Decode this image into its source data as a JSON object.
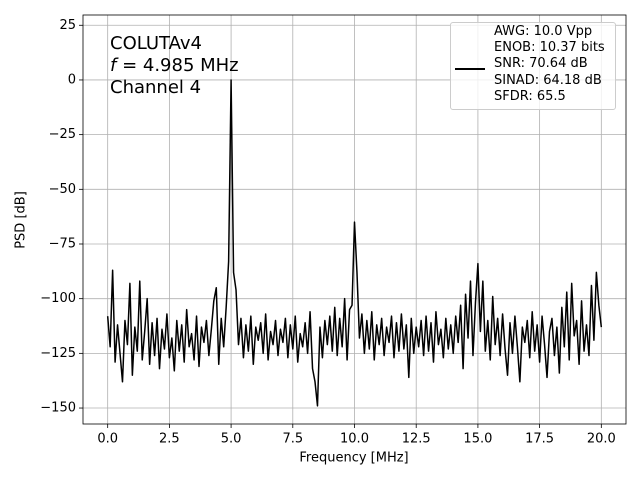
{
  "chart_data": {
    "type": "line",
    "annotation": {
      "line1": "COLUTAv4",
      "symbol": "f",
      "line2": " = 4.985 MHz",
      "line3": "Channel 4"
    },
    "x_label": "Frequency [MHz]",
    "y_label": "PSD [dB]",
    "xlim": [
      -1,
      21
    ],
    "ylim": [
      -157.3,
      29.7
    ],
    "xticks": [
      {
        "value": 0,
        "label": "0.0"
      },
      2.5,
      {
        "value": 5,
        "label": "5.0"
      },
      7.5,
      {
        "value": 10,
        "label": "10.0"
      },
      12.5,
      {
        "value": 15,
        "label": "15.0"
      },
      17.5,
      {
        "value": 20,
        "label": "20.0"
      }
    ],
    "yticks": [
      25,
      0,
      {
        "value": -25,
        "label": "−25"
      },
      {
        "value": -50,
        "label": "−50"
      },
      {
        "value": -75,
        "label": "−75"
      },
      {
        "value": -100,
        "label": "−100"
      },
      {
        "value": -125,
        "label": "−125"
      },
      {
        "value": -150,
        "label": "−150"
      }
    ],
    "grid": true,
    "x": [
      0,
      0.1,
      0.2,
      0.3,
      0.4,
      0.5,
      0.6,
      0.7,
      0.8,
      0.9,
      1,
      1.1,
      1.2,
      1.3,
      1.4,
      1.5,
      1.6,
      1.7,
      1.8,
      1.9,
      2,
      2.1,
      2.2,
      2.3,
      2.4,
      2.5,
      2.6,
      2.7,
      2.8,
      2.9,
      3,
      3.1,
      3.2,
      3.3,
      3.4,
      3.5,
      3.6,
      3.7,
      3.8,
      3.9,
      4,
      4.1,
      4.2,
      4.3,
      4.4,
      4.5,
      4.6,
      4.7,
      4.8,
      4.9,
      5,
      5.1,
      5.2,
      5.3,
      5.4,
      5.5,
      5.6,
      5.7,
      5.8,
      5.9,
      6,
      6.1,
      6.2,
      6.3,
      6.4,
      6.5,
      6.6,
      6.7,
      6.8,
      6.9,
      7,
      7.1,
      7.2,
      7.3,
      7.4,
      7.5,
      7.6,
      7.7,
      7.8,
      7.9,
      8,
      8.1,
      8.2,
      8.3,
      8.4,
      8.5,
      8.6,
      8.7,
      8.8,
      8.9,
      9,
      9.1,
      9.2,
      9.3,
      9.4,
      9.5,
      9.6,
      9.7,
      9.8,
      9.9,
      10,
      10.1,
      10.2,
      10.3,
      10.4,
      10.5,
      10.6,
      10.7,
      10.8,
      10.9,
      11,
      11.1,
      11.2,
      11.3,
      11.4,
      11.5,
      11.6,
      11.7,
      11.8,
      11.9,
      12,
      12.1,
      12.2,
      12.3,
      12.4,
      12.5,
      12.6,
      12.7,
      12.8,
      12.9,
      13,
      13.1,
      13.2,
      13.3,
      13.4,
      13.5,
      13.6,
      13.7,
      13.8,
      13.9,
      14,
      14.1,
      14.2,
      14.3,
      14.4,
      14.5,
      14.6,
      14.7,
      14.8,
      14.9,
      15,
      15.1,
      15.2,
      15.3,
      15.4,
      15.5,
      15.6,
      15.7,
      15.8,
      15.9,
      16,
      16.1,
      16.2,
      16.3,
      16.4,
      16.5,
      16.6,
      16.7,
      16.8,
      16.9,
      17,
      17.1,
      17.2,
      17.3,
      17.4,
      17.5,
      17.6,
      17.7,
      17.8,
      17.9,
      18,
      18.1,
      18.2,
      18.3,
      18.4,
      18.5,
      18.6,
      18.7,
      18.8,
      18.9,
      19,
      19.1,
      19.2,
      19.3,
      19.4,
      19.5,
      19.6,
      19.7,
      19.8,
      19.9,
      20
    ],
    "series": [
      {
        "name": "AWG: 10.0 Vpp\nENOB: 10.37 bits\nSNR: 70.64 dB\nSINAD: 64.18 dB\nSFDR: 65.5",
        "color": "#000000",
        "values": [
          -108,
          -122,
          -87,
          -129,
          -112,
          -125,
          -138,
          -110,
          -121,
          -93,
          -135,
          -113,
          -124,
          -92,
          -128,
          -115,
          -100,
          -130,
          -111,
          -126,
          -109,
          -132,
          -114,
          -123,
          -107,
          -127,
          -118,
          -133,
          -110,
          -124,
          -112,
          -129,
          -105,
          -122,
          -116,
          -128,
          -108,
          -131,
          -113,
          -120,
          -110,
          -126,
          -114,
          -101,
          -95,
          -130,
          -109,
          -122,
          -104,
          -83,
          0,
          -88,
          -96,
          -121,
          -109,
          -127,
          -112,
          -124,
          -108,
          -130,
          -113,
          -119,
          -111,
          -125,
          -107,
          -128,
          -115,
          -121,
          -110,
          -126,
          -114,
          -120,
          -109,
          -127,
          -112,
          -123,
          -108,
          -129,
          -116,
          -122,
          -111,
          -125,
          -106,
          -132,
          -138,
          -149,
          -113,
          -127,
          -110,
          -121,
          -108,
          -124,
          -104,
          -126,
          -109,
          -122,
          -100,
          -128,
          -105,
          -103,
          -65,
          -88,
          -118,
          -107,
          -125,
          -110,
          -123,
          -106,
          -128,
          -112,
          -121,
          -109,
          -126,
          -113,
          -120,
          -108,
          -127,
          -111,
          -124,
          -107,
          -123,
          -112,
          -136,
          -109,
          -125,
          -113,
          -122,
          -110,
          -126,
          -108,
          -124,
          -111,
          -129,
          -106,
          -121,
          -114,
          -127,
          -109,
          -123,
          -112,
          -125,
          -108,
          -120,
          -103,
          -132,
          -98,
          -118,
          -92,
          -126,
          -102,
          -84,
          -115,
          -92,
          -124,
          -110,
          -128,
          -99,
          -121,
          -109,
          -126,
          -107,
          -123,
          -135,
          -111,
          -125,
          -108,
          -122,
          -138,
          -113,
          -120,
          -110,
          -127,
          -106,
          -124,
          -112,
          -129,
          -108,
          -121,
          -136,
          -115,
          -109,
          -126,
          -113,
          -134,
          -104,
          -122,
          -97,
          -128,
          -93,
          -117,
          -110,
          -130,
          -101,
          -124,
          -112,
          -126,
          -94,
          -119,
          -88,
          -103,
          -113
        ]
      }
    ]
  }
}
